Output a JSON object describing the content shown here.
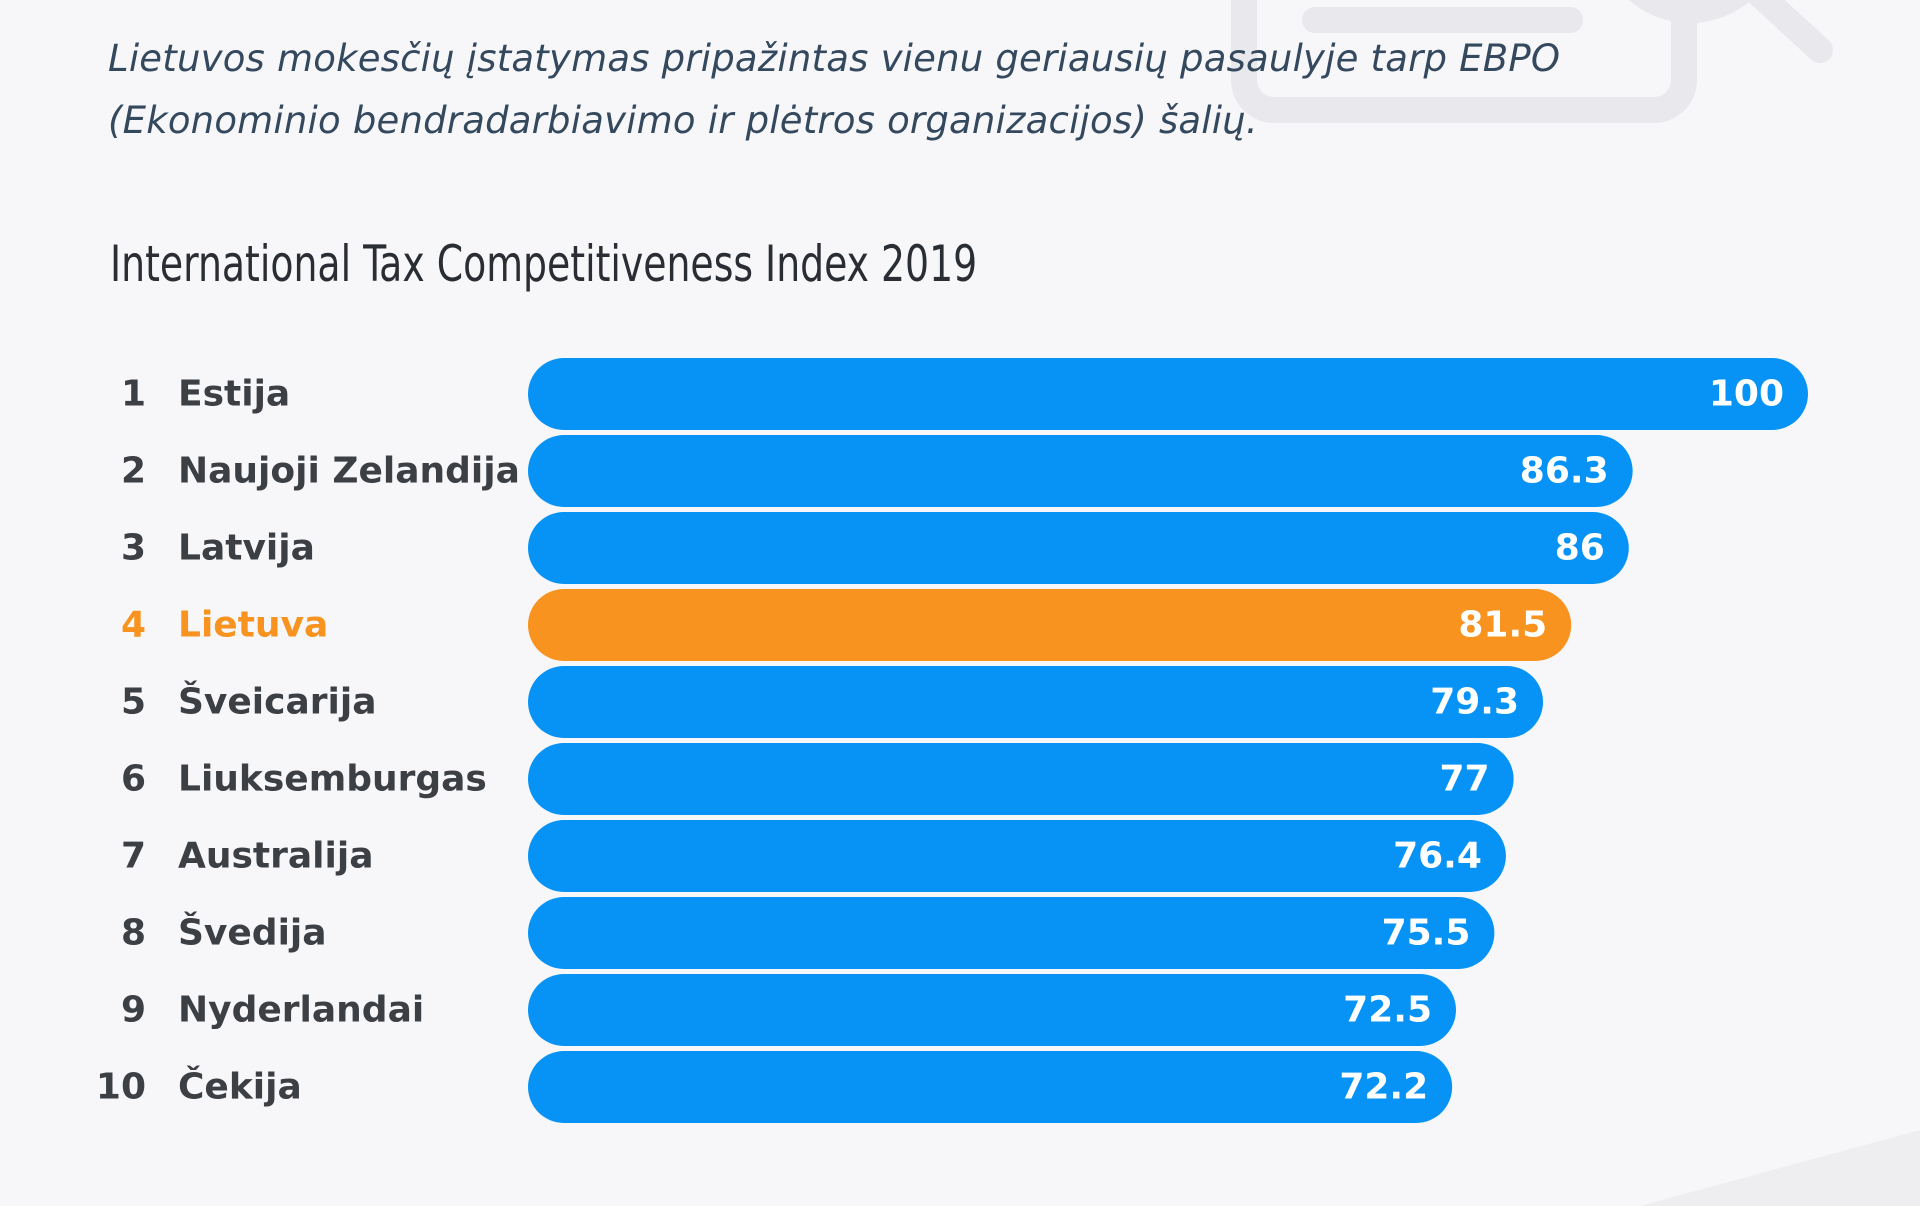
{
  "intro": {
    "line1": "Lietuvos mokesčių įstatymas pripažintas vienu geriausių pasaulyje tarp EBPO",
    "line2": "(Ekonominio bendradarbiavimo ir plėtros organizacijos) šalių."
  },
  "colors": {
    "bar": "#0693f5",
    "highlight": "#f7931e",
    "label": "#3c3f44",
    "background": "#f7f7f9"
  },
  "chart_data": {
    "type": "bar",
    "orientation": "horizontal",
    "title": "International Tax Competitiveness Index 2019",
    "xlim": [
      0,
      100
    ],
    "grid": false,
    "legend": "none",
    "highlight_rank": "4",
    "ranks": [
      "1",
      "2",
      "3",
      "4",
      "5",
      "6",
      "7",
      "8",
      "9",
      "10"
    ],
    "categories": [
      "Estija",
      "Naujoji Zelandija",
      "Latvija",
      "Lietuva",
      "Šveicarija",
      "Liuksemburgas",
      "Australija",
      "Švedija",
      "Nyderlandai",
      "Čekija"
    ],
    "values": [
      100,
      86.3,
      86,
      81.5,
      79.3,
      77,
      76.4,
      75.5,
      72.5,
      72.2
    ],
    "value_labels": [
      "100",
      "86.3",
      "86",
      "81.5",
      "79.3",
      "77",
      "76.4",
      "75.5",
      "72.5",
      "72.2"
    ]
  }
}
